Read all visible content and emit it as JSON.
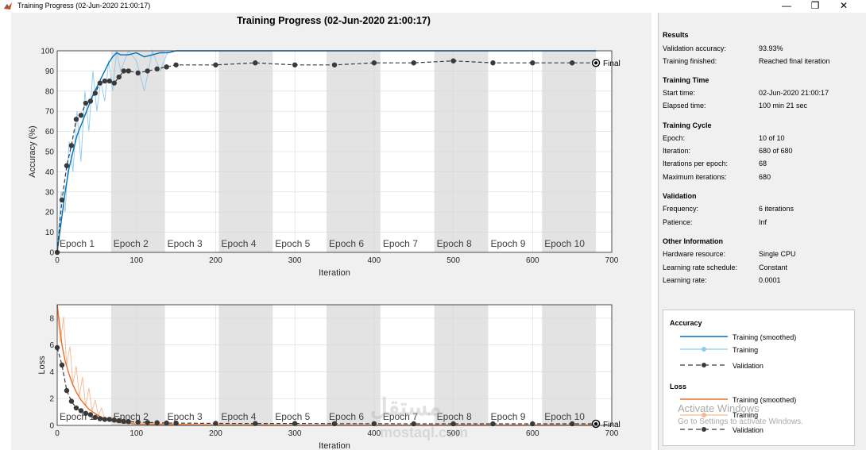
{
  "window": {
    "title": "Training Progress (02-Jun-2020 21:00:17)",
    "minimize": "—",
    "restore": "❐",
    "close": "✕"
  },
  "plot_title": "Training Progress (02-Jun-2020 21:00:17)",
  "results": {
    "heading": "Results",
    "rows": [
      {
        "key": "Validation accuracy:",
        "value": "93.93%"
      },
      {
        "key": "Training finished:",
        "value": "Reached final iteration"
      }
    ]
  },
  "training_time": {
    "heading": "Training Time",
    "rows": [
      {
        "key": "Start time:",
        "value": "02-Jun-2020 21:00:17"
      },
      {
        "key": "Elapsed time:",
        "value": "100 min 21 sec"
      }
    ]
  },
  "training_cycle": {
    "heading": "Training Cycle",
    "rows": [
      {
        "key": "Epoch:",
        "value": "10 of 10"
      },
      {
        "key": "Iteration:",
        "value": "680 of 680"
      },
      {
        "key": "Iterations per epoch:",
        "value": "68"
      },
      {
        "key": "Maximum iterations:",
        "value": "680"
      }
    ]
  },
  "validation": {
    "heading": "Validation",
    "rows": [
      {
        "key": "Frequency:",
        "value": "6 iterations"
      },
      {
        "key": "Patience:",
        "value": "Inf"
      }
    ]
  },
  "other_information": {
    "heading": "Other Information",
    "rows": [
      {
        "key": "Hardware resource:",
        "value": "Single CPU"
      },
      {
        "key": "Learning rate schedule:",
        "value": "Constant"
      },
      {
        "key": "Learning rate:",
        "value": "0.0001"
      }
    ]
  },
  "legend": {
    "accuracy_heading": "Accuracy",
    "loss_heading": "Loss",
    "accuracy_items": [
      "Training (smoothed)",
      "Training",
      "Validation"
    ],
    "loss_items": [
      "Training (smoothed)",
      "Training",
      "Validation"
    ]
  },
  "colors": {
    "acc_smoothed": "#0072bd",
    "acc_training": "#8ec9ee",
    "loss_smoothed": "#e8702a",
    "loss_training": "#f6b98f",
    "validation": "#3a3a3a"
  },
  "watermark": {
    "activate_title": "Activate Windows",
    "activate_sub": "Go to Settings to activate Windows.",
    "logo_text": "mostaql.com",
    "logo_arabic": "مستقل"
  },
  "chart_data": [
    {
      "type": "line",
      "title": "Training Progress (02-Jun-2020 21:00:17)",
      "xlabel": "Iteration",
      "ylabel": "Accuracy (%)",
      "xlim": [
        0,
        700
      ],
      "ylim": [
        0,
        100
      ],
      "xticks": [
        0,
        100,
        200,
        300,
        400,
        500,
        600,
        700
      ],
      "yticks": [
        0,
        10,
        20,
        30,
        40,
        50,
        60,
        70,
        80,
        90,
        100
      ],
      "epoch_labels": [
        "Epoch 1",
        "Epoch 2",
        "Epoch 3",
        "Epoch 4",
        "Epoch 5",
        "Epoch 6",
        "Epoch 7",
        "Epoch 8",
        "Epoch 9",
        "Epoch 10"
      ],
      "iterations_per_epoch": 68,
      "final_label": "Final",
      "series": [
        {
          "name": "Training (smoothed)",
          "x": [
            0,
            5,
            10,
            15,
            20,
            25,
            30,
            35,
            40,
            45,
            50,
            55,
            60,
            65,
            70,
            75,
            80,
            90,
            100,
            110,
            120,
            130,
            140,
            150,
            200,
            250,
            300,
            350,
            400,
            450,
            500,
            550,
            600,
            650,
            680
          ],
          "y": [
            0,
            15,
            30,
            42,
            50,
            58,
            63,
            68,
            73,
            78,
            82,
            86,
            90,
            94,
            97,
            99,
            98,
            98,
            99,
            97,
            98,
            99,
            99,
            100,
            100,
            100,
            100,
            100,
            100,
            100,
            100,
            100,
            100,
            100,
            100
          ]
        },
        {
          "name": "Training",
          "x": [
            0,
            5,
            10,
            15,
            20,
            25,
            30,
            35,
            40,
            45,
            50,
            55,
            60,
            65,
            70,
            75,
            80,
            90,
            100,
            110,
            120,
            130,
            140,
            200,
            300,
            400,
            500,
            600,
            680
          ],
          "y": [
            0,
            30,
            20,
            55,
            40,
            70,
            45,
            80,
            60,
            90,
            70,
            85,
            75,
            95,
            80,
            100,
            90,
            100,
            95,
            80,
            100,
            90,
            100,
            100,
            100,
            100,
            100,
            100,
            100
          ]
        },
        {
          "name": "Validation",
          "x": [
            0,
            6,
            12,
            18,
            24,
            30,
            36,
            42,
            48,
            54,
            60,
            66,
            72,
            78,
            84,
            90,
            102,
            114,
            126,
            138,
            150,
            200,
            250,
            300,
            350,
            400,
            450,
            500,
            550,
            600,
            650,
            680
          ],
          "y": [
            0,
            26,
            43,
            53,
            66,
            68,
            74,
            75,
            79,
            84,
            85,
            85,
            84,
            87,
            90,
            90,
            89,
            90,
            91,
            92,
            93,
            93,
            94,
            93,
            93,
            94,
            94,
            95,
            94,
            94,
            94,
            94
          ]
        }
      ]
    },
    {
      "type": "line",
      "xlabel": "Iteration",
      "ylabel": "Loss",
      "xlim": [
        0,
        700
      ],
      "ylim": [
        0,
        9
      ],
      "xticks": [
        0,
        100,
        200,
        300,
        400,
        500,
        600,
        700
      ],
      "yticks": [
        0,
        2,
        4,
        6,
        8
      ],
      "epoch_labels": [
        "Epoch 1",
        "Epoch 2",
        "Epoch 3",
        "Epoch 4",
        "Epoch 5",
        "Epoch 6",
        "Epoch 7",
        "Epoch 8",
        "Epoch 9",
        "Epoch 10"
      ],
      "final_label": "Final",
      "series": [
        {
          "name": "Training (smoothed)",
          "x": [
            0,
            3,
            6,
            10,
            15,
            20,
            25,
            30,
            40,
            50,
            60,
            70,
            80,
            100,
            150,
            200,
            300,
            400,
            500,
            600,
            680
          ],
          "y": [
            9.2,
            7.5,
            6,
            4.8,
            3.8,
            3,
            2.4,
            1.9,
            1.2,
            0.8,
            0.5,
            0.3,
            0.2,
            0.1,
            0.05,
            0.03,
            0.02,
            0.02,
            0.02,
            0.02,
            0.02
          ]
        },
        {
          "name": "Training",
          "x": [
            0,
            4,
            8,
            12,
            16,
            20,
            24,
            28,
            32,
            36,
            40,
            44,
            48,
            52,
            56,
            60,
            70,
            80,
            100,
            150,
            200,
            300,
            400,
            500,
            600,
            680
          ],
          "y": [
            8.5,
            6.2,
            8.1,
            4.5,
            5.9,
            3.1,
            4.4,
            2.2,
            3.6,
            1.4,
            2.8,
            1.1,
            1.9,
            0.7,
            1.3,
            0.5,
            0.6,
            0.3,
            0.2,
            0.1,
            0.05,
            0.03,
            0.02,
            0.02,
            0.02,
            0.02
          ]
        },
        {
          "name": "Validation",
          "x": [
            0,
            6,
            12,
            18,
            24,
            30,
            36,
            42,
            48,
            54,
            60,
            66,
            72,
            78,
            84,
            90,
            102,
            114,
            126,
            138,
            150,
            200,
            250,
            300,
            350,
            400,
            450,
            500,
            550,
            600,
            650,
            680
          ],
          "y": [
            5.8,
            4.5,
            2.6,
            1.8,
            1.3,
            1.1,
            0.9,
            0.8,
            0.6,
            0.5,
            0.45,
            0.45,
            0.4,
            0.35,
            0.3,
            0.28,
            0.25,
            0.22,
            0.2,
            0.18,
            0.17,
            0.15,
            0.14,
            0.14,
            0.13,
            0.13,
            0.12,
            0.12,
            0.12,
            0.12,
            0.12,
            0.12
          ]
        }
      ]
    }
  ]
}
